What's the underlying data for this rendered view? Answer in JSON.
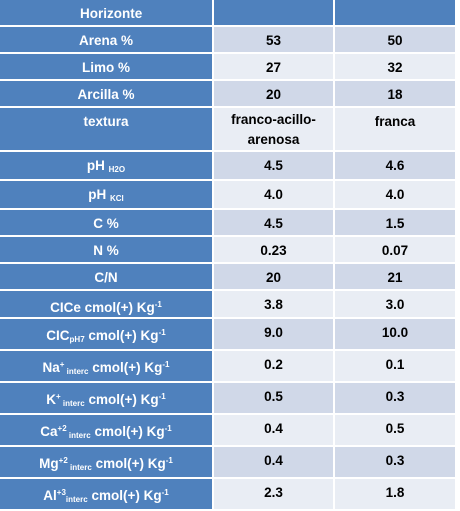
{
  "header": {
    "label": "Horizonte",
    "col2": "",
    "col3": ""
  },
  "rows": [
    {
      "label": "Arena %",
      "v1": "53",
      "v2": "50"
    },
    {
      "label": "Limo %",
      "v1": "27",
      "v2": "32"
    },
    {
      "label": "Arcilla %",
      "v1": "20",
      "v2": "18"
    },
    {
      "label": "textura",
      "v1_line1": "franco-acillo-",
      "v1_line2": "arenosa",
      "v2": "franca"
    },
    {
      "label": "pH",
      "sub": "H2O",
      "v1": "4.5",
      "v2": "4.6"
    },
    {
      "label": "pH",
      "sub": "KCl",
      "v1": "4.0",
      "v2": "4.0"
    },
    {
      "label": "C %",
      "v1": "4.5",
      "v2": "1.5"
    },
    {
      "label": "N %",
      "v1": "0.23",
      "v2": "0.07"
    },
    {
      "label": "C/N",
      "v1": "20",
      "v2": "21"
    },
    {
      "label": "CICe  cmol(+) Kg",
      "sup": "-1",
      "v1": "3.8",
      "v2": "3.0"
    },
    {
      "label_pre": "CIC",
      "sub": "pH7",
      "label_post": " cmol(+) Kg",
      "sup": "-1",
      "v1": "9.0",
      "v2": "10.0"
    },
    {
      "label_pre": "Na",
      "ion_sup": "+",
      "sub": " interc",
      "label_post": " cmol(+) Kg",
      "sup": "-1",
      "v1": "0.2",
      "v2": "0.1"
    },
    {
      "label_pre": "K",
      "ion_sup": "+",
      "sub": " interc",
      "label_post": " cmol(+) Kg",
      "sup": "-1",
      "v1": "0.5",
      "v2": "0.3"
    },
    {
      "label_pre": "Ca",
      "ion_sup": "+2",
      "sub": " interc",
      "label_post": " cmol(+) Kg",
      "sup": "-1",
      "v1": "0.4",
      "v2": "0.5"
    },
    {
      "label_pre": "Mg",
      "ion_sup": "+2",
      "sub": " interc",
      "label_post": " cmol(+) Kg",
      "sup": "-1",
      "v1": "0.4",
      "v2": "0.3"
    },
    {
      "label_pre": "Al",
      "ion_sup": "+3",
      "sub": "interc",
      "label_post": " cmol(+) Kg",
      "sup": "-1",
      "v1": "2.3",
      "v2": "1.8"
    }
  ]
}
